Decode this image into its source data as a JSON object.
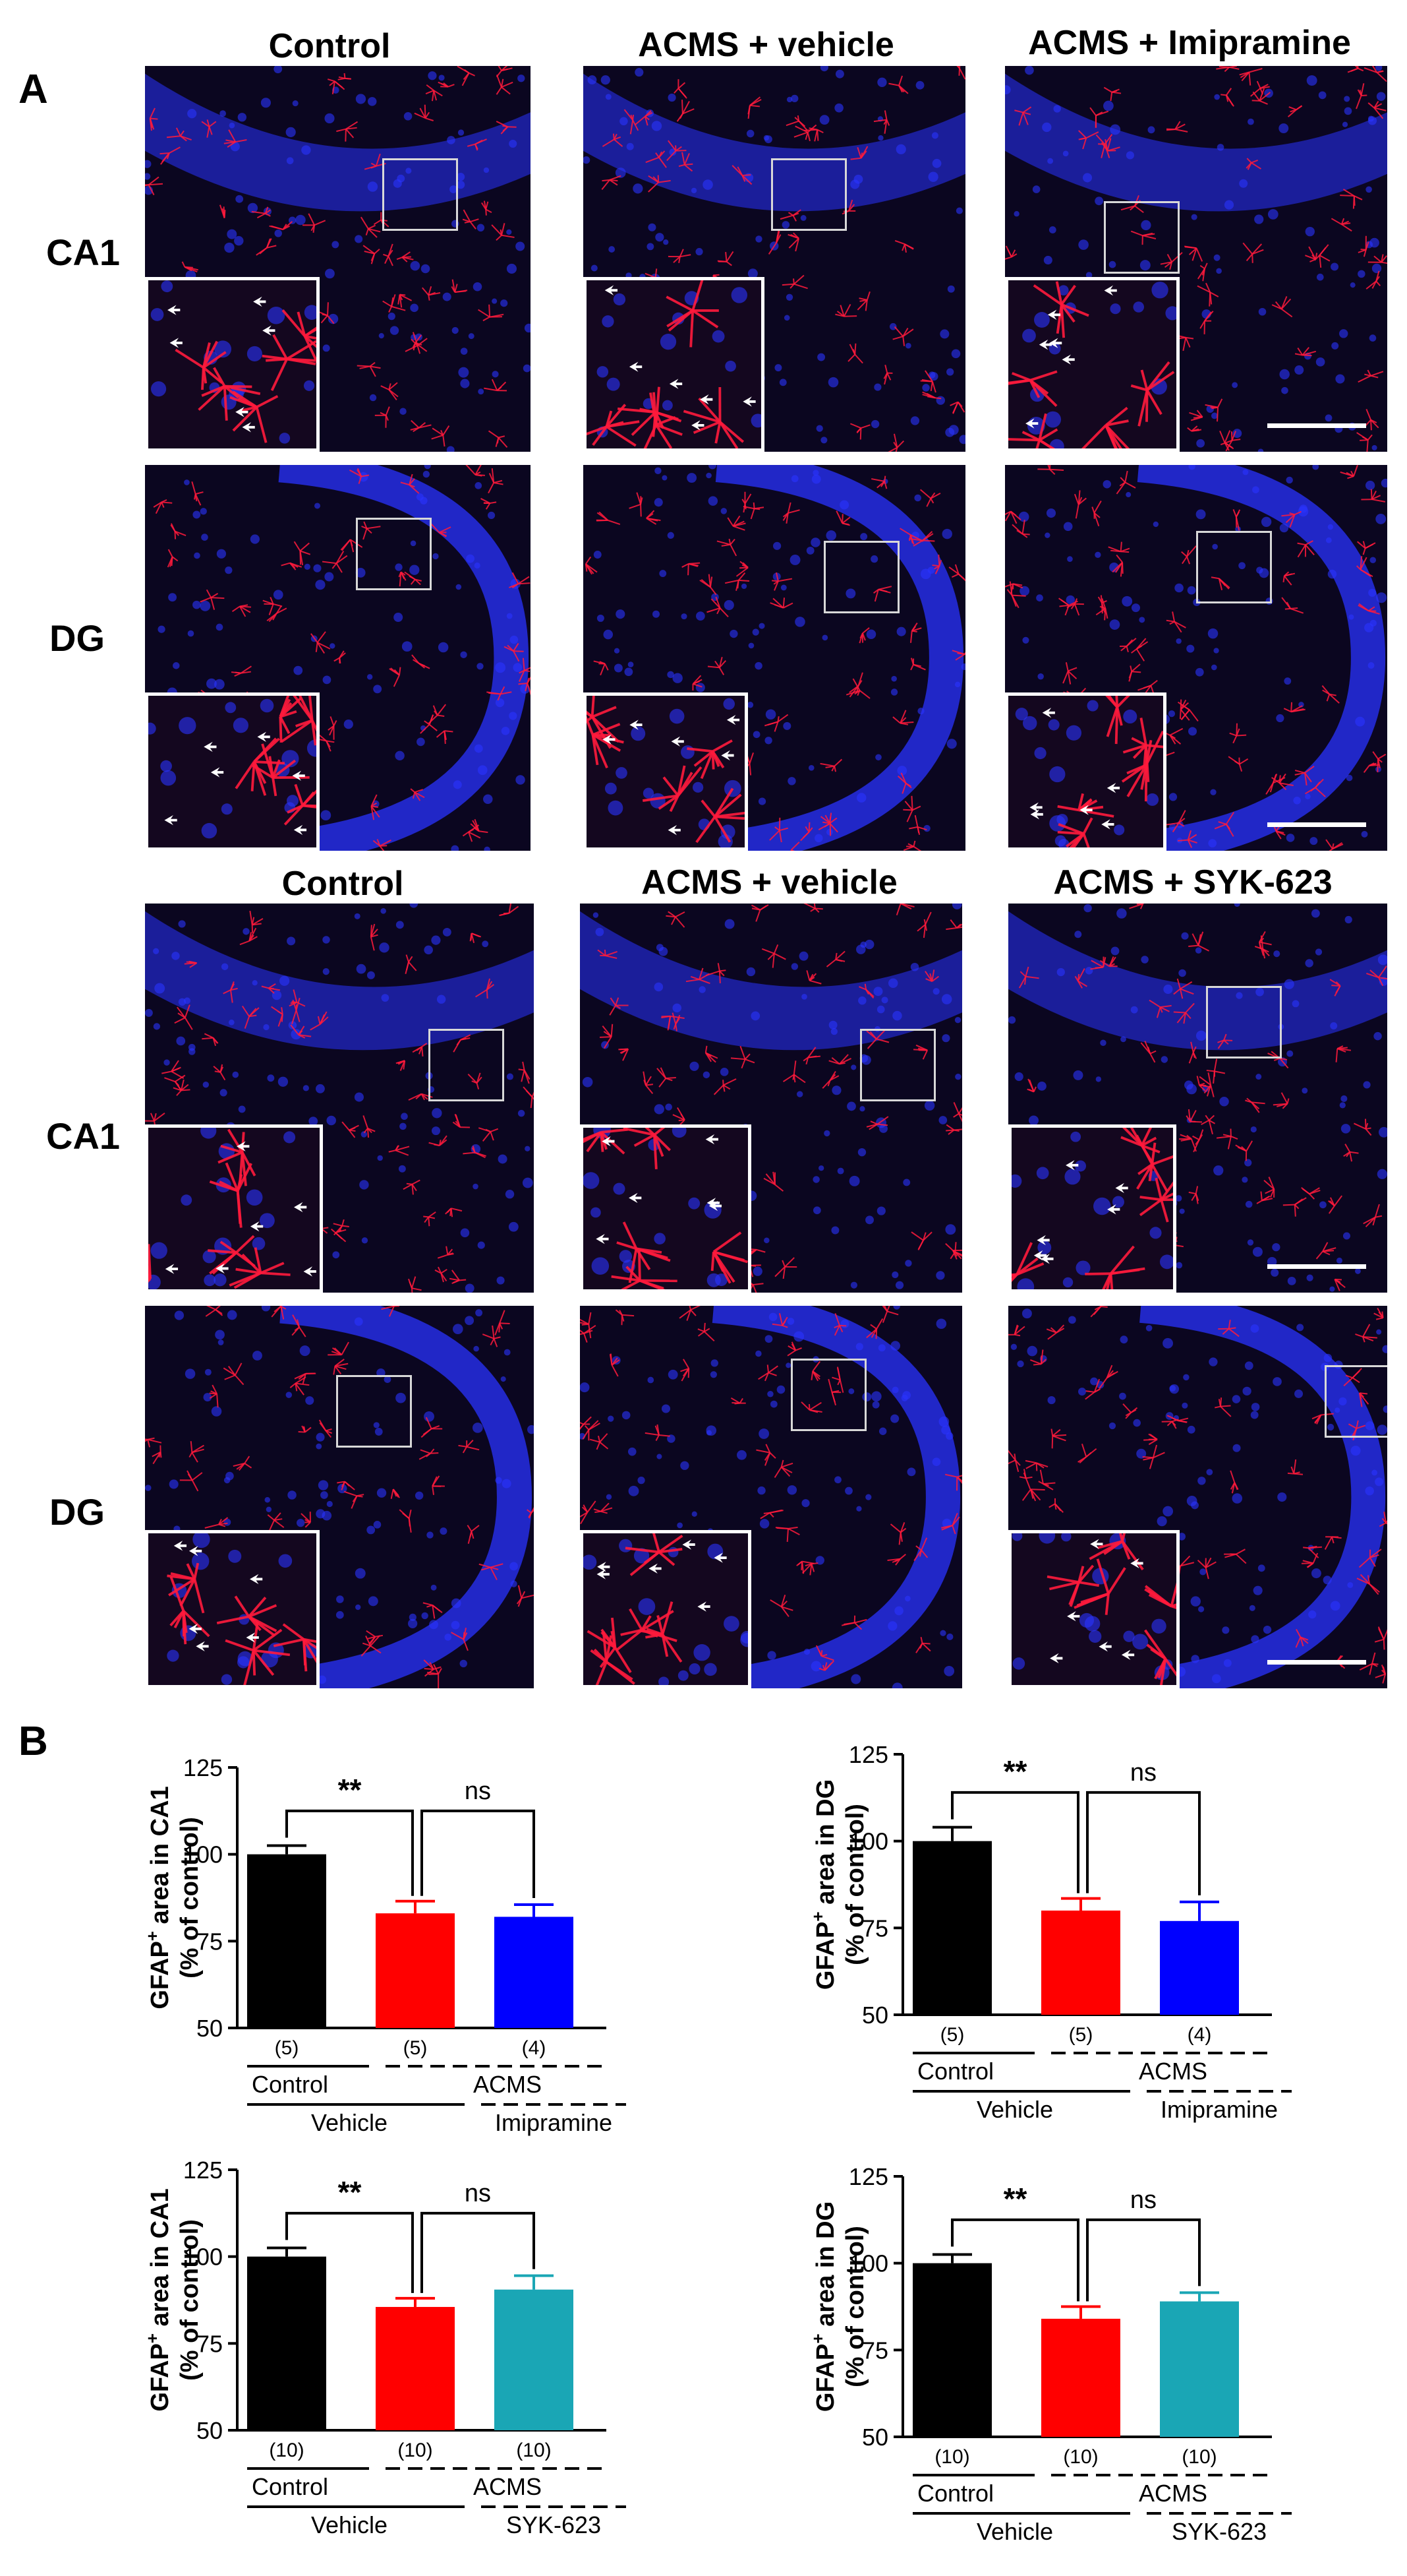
{
  "panel_a_label": "A",
  "panel_b_label": "B",
  "imaging": {
    "top": {
      "columns": [
        "Control",
        "ACMS + vehicle",
        "ACMS + Imipramine"
      ],
      "rows": [
        "CA1",
        "DG"
      ]
    },
    "bottom": {
      "columns": [
        "Control",
        "ACMS + vehicle",
        "ACMS + SYK-623"
      ],
      "rows": [
        "CA1",
        "DG"
      ]
    },
    "colors": {
      "nuclei": "#2a33ff",
      "astrocytes": "#ff1a3c",
      "background": "#0b0620"
    }
  },
  "chart_data": [
    {
      "type": "bar",
      "ylabel_main": "GFAP",
      "ylabel_sup": "+",
      "ylabel_rest": " area in CA1",
      "ylabel2": "(% of control)",
      "ylim": [
        50,
        125
      ],
      "yticks": [
        "50",
        "75",
        "100",
        "125"
      ],
      "values": [
        100,
        83,
        82
      ],
      "errors": [
        2.5,
        3.5,
        3.5
      ],
      "n_labels": [
        "(5)",
        "(5)",
        "(4)"
      ],
      "colors": [
        "#000000",
        "#ff0000",
        "#0000ff"
      ],
      "sig": [
        "**",
        "ns"
      ],
      "groups": {
        "control": "Control",
        "acms": "ACMS",
        "vehicle": "Vehicle",
        "drug": "Imipramine"
      }
    },
    {
      "type": "bar",
      "ylabel_main": "GFAP",
      "ylabel_sup": "+",
      "ylabel_rest": " area in DG",
      "ylabel2": "(% of control)",
      "ylim": [
        50,
        125
      ],
      "yticks": [
        "50",
        "75",
        "100",
        "125"
      ],
      "values": [
        100,
        80,
        77
      ],
      "errors": [
        4,
        3.5,
        5.5
      ],
      "n_labels": [
        "(5)",
        "(5)",
        "(4)"
      ],
      "colors": [
        "#000000",
        "#ff0000",
        "#0000ff"
      ],
      "sig": [
        "**",
        "ns"
      ],
      "groups": {
        "control": "Control",
        "acms": "ACMS",
        "vehicle": "Vehicle",
        "drug": "Imipramine"
      }
    },
    {
      "type": "bar",
      "ylabel_main": "GFAP",
      "ylabel_sup": "+",
      "ylabel_rest": " area in CA1",
      "ylabel2": "(% of control)",
      "ylim": [
        50,
        125
      ],
      "yticks": [
        "50",
        "75",
        "100",
        "125"
      ],
      "values": [
        100,
        85.5,
        90.5
      ],
      "errors": [
        2.5,
        2.5,
        4
      ],
      "n_labels": [
        "(10)",
        "(10)",
        "(10)"
      ],
      "colors": [
        "#000000",
        "#ff0000",
        "#1aa6b5"
      ],
      "sig": [
        "**",
        "ns"
      ],
      "groups": {
        "control": "Control",
        "acms": "ACMS",
        "vehicle": "Vehicle",
        "drug": "SYK-623"
      }
    },
    {
      "type": "bar",
      "ylabel_main": "GFAP",
      "ylabel_sup": "+",
      "ylabel_rest": " area in DG",
      "ylabel2": "(% of control)",
      "ylim": [
        50,
        125
      ],
      "yticks": [
        "50",
        "75",
        "100",
        "125"
      ],
      "values": [
        100,
        84,
        89
      ],
      "errors": [
        2.5,
        3.5,
        2.5
      ],
      "n_labels": [
        "(10)",
        "(10)",
        "(10)"
      ],
      "colors": [
        "#000000",
        "#ff0000",
        "#1aa6b5"
      ],
      "sig": [
        "**",
        "ns"
      ],
      "groups": {
        "control": "Control",
        "acms": "ACMS",
        "vehicle": "Vehicle",
        "drug": "SYK-623"
      }
    }
  ]
}
